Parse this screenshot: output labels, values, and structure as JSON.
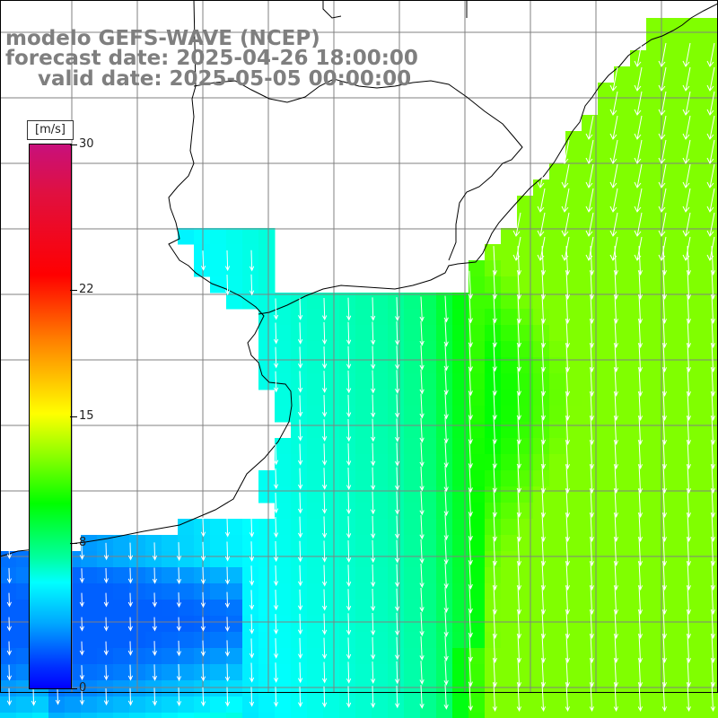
{
  "header": {
    "model_line": "modelo GEFS-WAVE (NCEP)",
    "forecast_line": "forecast date: 2025-04-26 18:00:00",
    "valid_line": "valid date: 2025-05-05 00:00:00"
  },
  "colorbar": {
    "unit": "[m/s]",
    "range": [
      0,
      30
    ],
    "ticks": [
      {
        "value": 0,
        "label": "0"
      },
      {
        "value": 8,
        "label": "8"
      },
      {
        "value": 15,
        "label": "15"
      },
      {
        "value": 22,
        "label": "22"
      },
      {
        "value": 30,
        "label": "30"
      }
    ],
    "colors": [
      "#0000ff",
      "#00a8ff",
      "#00ffff",
      "#00ff00",
      "#ffff00",
      "#ff8000",
      "#ff0000",
      "#c8107c"
    ]
  },
  "map": {
    "field": "wind speed and direction",
    "wind_direction": "from north-northeast (arrows pointing south-southwest)",
    "speed_range_shown": [
      5,
      14
    ],
    "land_color": "#ffffff",
    "coastline_color": "#000000",
    "grid_color": "#808080"
  }
}
